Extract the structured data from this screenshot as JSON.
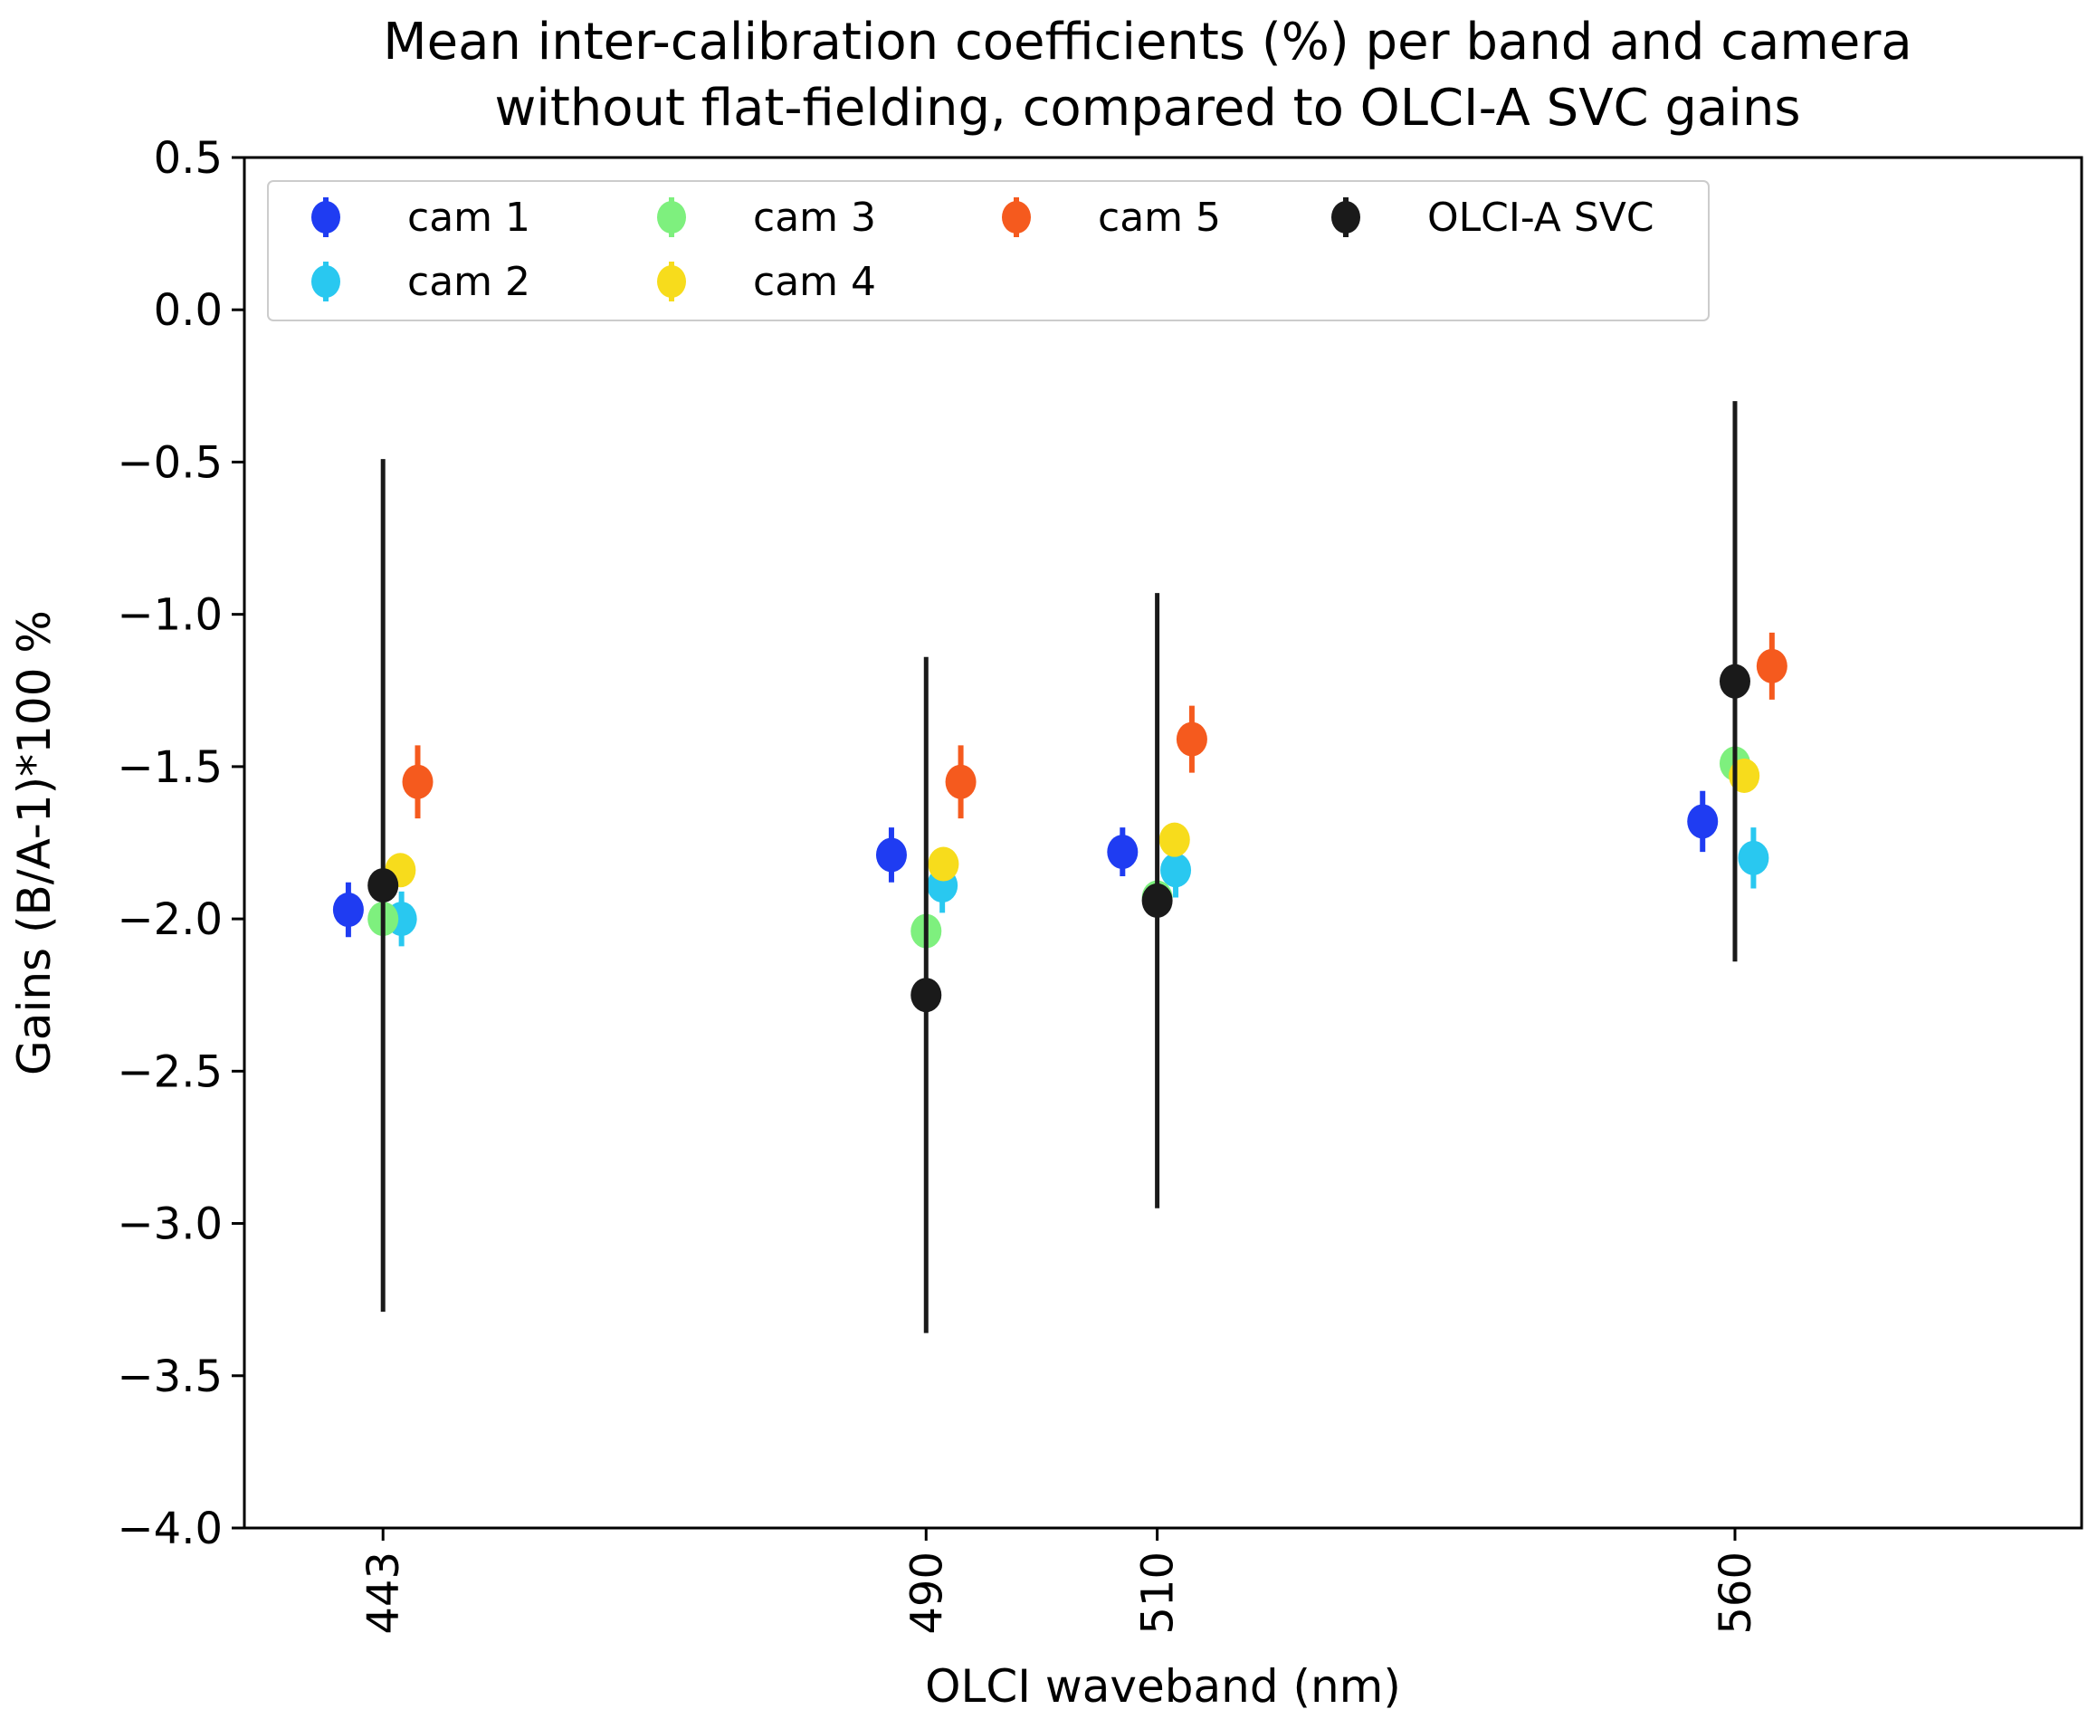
{
  "chart_data": {
    "type": "scatter",
    "title": [
      "Mean inter-calibration coefficients (%) per band and camera",
      "without flat-fielding, compared to OLCI-A SVC gains"
    ],
    "xlabel": "OLCI waveband (nm)",
    "ylabel": "Gains (B/A-1)*100 %",
    "xlim": [
      431,
      590
    ],
    "ylim": [
      -4.0,
      0.5
    ],
    "x_ticks": [
      443,
      490,
      510,
      560
    ],
    "x_tick_labels": [
      "443",
      "490",
      "510",
      "560"
    ],
    "y_ticks": [
      0.5,
      0.0,
      -0.5,
      -1.0,
      -1.5,
      -2.0,
      -2.5,
      -3.0,
      -3.5,
      -4.0
    ],
    "y_tick_labels": [
      "0.5",
      "0.0",
      "−0.5",
      "−1.0",
      "−1.5",
      "−2.0",
      "−2.5",
      "−3.0",
      "−3.5",
      "−4.0"
    ],
    "grid": false,
    "legend_position": "top-left",
    "series": [
      {
        "name": "cam 1",
        "color": "#1f3cf2",
        "points": [
          {
            "x": 440,
            "y": -1.97,
            "err": 0.09
          },
          {
            "x": 487,
            "y": -1.79,
            "err": 0.09
          },
          {
            "x": 507,
            "y": -1.78,
            "err": 0.08
          },
          {
            "x": 557.2,
            "y": -1.68,
            "err": 0.1
          }
        ]
      },
      {
        "name": "cam 2",
        "color": "#29c8f0",
        "points": [
          {
            "x": 444.6,
            "y": -2.0,
            "err": 0.09
          },
          {
            "x": 491.4,
            "y": -1.89,
            "err": 0.09
          },
          {
            "x": 511.6,
            "y": -1.84,
            "err": 0.09
          },
          {
            "x": 561.6,
            "y": -1.8,
            "err": 0.1
          }
        ]
      },
      {
        "name": "cam 3",
        "color": "#7ef07e",
        "points": [
          {
            "x": 443,
            "y": -2.0,
            "err": 0.05
          },
          {
            "x": 490,
            "y": -2.04,
            "err": 0.05
          },
          {
            "x": 510,
            "y": -1.93,
            "err": 0.05
          },
          {
            "x": 560,
            "y": -1.49,
            "err": 0.05
          }
        ]
      },
      {
        "name": "cam 4",
        "color": "#f7dc1c",
        "points": [
          {
            "x": 444.5,
            "y": -1.84,
            "err": 0.05
          },
          {
            "x": 491.5,
            "y": -1.82,
            "err": 0.05
          },
          {
            "x": 511.5,
            "y": -1.74,
            "err": 0.05
          },
          {
            "x": 560.8,
            "y": -1.53,
            "err": 0.05
          }
        ]
      },
      {
        "name": "cam 5",
        "color": "#f55a1e",
        "points": [
          {
            "x": 446,
            "y": -1.55,
            "err": 0.12
          },
          {
            "x": 493,
            "y": -1.55,
            "err": 0.12
          },
          {
            "x": 513,
            "y": -1.41,
            "err": 0.11
          },
          {
            "x": 563.2,
            "y": -1.17,
            "err": 0.11
          }
        ]
      },
      {
        "name": "OLCI-A SVC",
        "color": "#1a1a1a",
        "points": [
          {
            "x": 443,
            "y": -1.89,
            "err": 1.4
          },
          {
            "x": 490,
            "y": -2.25,
            "err": 1.11
          },
          {
            "x": 510,
            "y": -1.94,
            "err": 1.01
          },
          {
            "x": 560,
            "y": -1.22,
            "err": 0.92
          }
        ]
      }
    ]
  }
}
